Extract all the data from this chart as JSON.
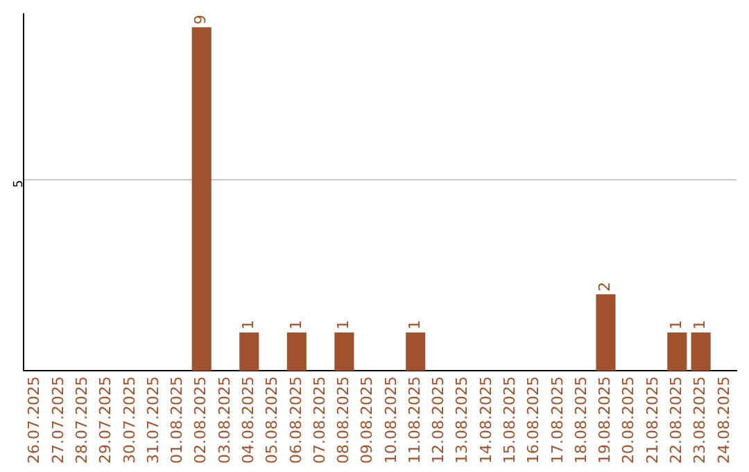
{
  "chart_data": {
    "type": "bar",
    "categories": [
      "26.07.2025",
      "27.07.2025",
      "28.07.2025",
      "29.07.2025",
      "30.07.2025",
      "31.07.2025",
      "01.08.2025",
      "02.08.2025",
      "03.08.2025",
      "04.08.2025",
      "05.08.2025",
      "06.08.2025",
      "07.08.2025",
      "08.08.2025",
      "09.08.2025",
      "10.08.2025",
      "11.08.2025",
      "12.08.2025",
      "13.08.2025",
      "14.08.2025",
      "15.08.2025",
      "16.08.2025",
      "17.08.2025",
      "18.08.2025",
      "19.08.2025",
      "20.08.2025",
      "21.08.2025",
      "22.08.2025",
      "23.08.2025",
      "24.08.2025"
    ],
    "values": [
      0,
      0,
      0,
      0,
      0,
      0,
      0,
      9,
      0,
      1,
      0,
      1,
      0,
      1,
      0,
      0,
      1,
      0,
      0,
      0,
      0,
      0,
      0,
      0,
      2,
      0,
      0,
      1,
      1,
      0
    ],
    "value_labels": [
      null,
      null,
      null,
      null,
      null,
      null,
      null,
      "9",
      null,
      "1",
      null,
      "1",
      null,
      "1",
      null,
      null,
      "1",
      null,
      null,
      null,
      null,
      null,
      null,
      null,
      "2",
      null,
      null,
      "1",
      "1",
      null
    ],
    "color": "#a0522d",
    "ylim": [
      0,
      9.35
    ],
    "yticks": [
      5
    ],
    "grid": "y",
    "legend": false
  }
}
